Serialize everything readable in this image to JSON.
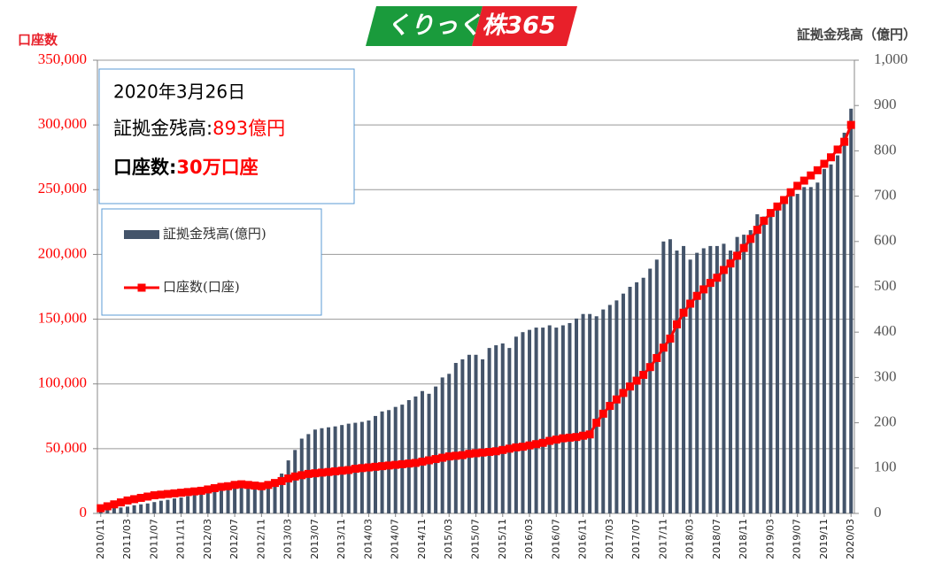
{
  "chart_data": {
    "type": "combo",
    "logo": "くりっく株365",
    "y_label": "口座数",
    "y2_label": "証拠金残高（億円）",
    "annotation": {
      "date": "2020年3月26日",
      "balance_label": "証拠金残高:",
      "balance_value": "893億円",
      "accounts_label": "口座数:",
      "accounts_value": "30万口座"
    },
    "categories": [
      "2010/11",
      null,
      null,
      null,
      "2011/03",
      null,
      null,
      null,
      "2011/07",
      null,
      null,
      null,
      "2011/11",
      null,
      null,
      null,
      "2012/03",
      null,
      null,
      null,
      "2012/07",
      null,
      null,
      null,
      "2012/11",
      null,
      null,
      null,
      "2013/03",
      null,
      null,
      null,
      "2013/07",
      null,
      null,
      null,
      "2013/11",
      null,
      null,
      null,
      "2014/03",
      null,
      null,
      null,
      "2014/07",
      null,
      null,
      null,
      "2014/11",
      null,
      null,
      null,
      "2015/03",
      null,
      null,
      null,
      "2015/07",
      null,
      null,
      null,
      "2015/11",
      null,
      null,
      null,
      "2016/03",
      null,
      null,
      null,
      "2016/07",
      null,
      null,
      null,
      "2016/11",
      null,
      null,
      null,
      "2017/03",
      null,
      null,
      null,
      "2017/07",
      null,
      null,
      null,
      "2017/11",
      null,
      null,
      null,
      "2018/03",
      null,
      null,
      null,
      "2018/07",
      null,
      null,
      null,
      "2018/11",
      null,
      null,
      null,
      "2019/03",
      null,
      null,
      null,
      "2019/07",
      null,
      null,
      null,
      "2019/11",
      null,
      null,
      null,
      "2020/03"
    ],
    "series": [
      {
        "name": "証拠金残高(億円)",
        "type": "bar",
        "axis": "y2",
        "color": "#44546a",
        "values": [
          8,
          10,
          12,
          13,
          15,
          18,
          20,
          22,
          25,
          28,
          30,
          33,
          35,
          38,
          40,
          42,
          45,
          48,
          50,
          52,
          55,
          56,
          58,
          58,
          60,
          65,
          72,
          88,
          117,
          140,
          165,
          175,
          185,
          188,
          190,
          192,
          195,
          198,
          200,
          202,
          205,
          215,
          225,
          228,
          235,
          240,
          250,
          258,
          270,
          264,
          280,
          300,
          308,
          332,
          340,
          350,
          350,
          340,
          365,
          371,
          375,
          365,
          390,
          400,
          405,
          410,
          410,
          415,
          410,
          415,
          420,
          430,
          440,
          440,
          435,
          450,
          460,
          470,
          485,
          500,
          510,
          520,
          540,
          560,
          600,
          605,
          580,
          590,
          560,
          575,
          585,
          590,
          590,
          595,
          580,
          610,
          615,
          625,
          660,
          655,
          670,
          680,
          700,
          710,
          705,
          720,
          720,
          730,
          760,
          770,
          790,
          840,
          893
        ]
      },
      {
        "name": "口座数(口座)",
        "type": "line",
        "color": "#ff0000",
        "values": [
          4000,
          5500,
          7000,
          8500,
          10000,
          11000,
          12000,
          13000,
          14000,
          14500,
          15000,
          15500,
          16000,
          16500,
          17000,
          17500,
          18500,
          19500,
          20500,
          21000,
          22000,
          22500,
          22000,
          21500,
          21000,
          22000,
          23500,
          25000,
          27000,
          28500,
          29500,
          30500,
          31000,
          31500,
          32000,
          32500,
          33000,
          33500,
          34500,
          35000,
          35500,
          36000,
          36500,
          37000,
          37500,
          38000,
          38500,
          39000,
          40000,
          41000,
          42000,
          43000,
          44000,
          44500,
          45000,
          46000,
          46500,
          47000,
          47500,
          48000,
          49000,
          50000,
          51000,
          51500,
          52500,
          53500,
          54500,
          56000,
          57000,
          58000,
          58500,
          59000,
          60000,
          61000,
          70000,
          77000,
          83000,
          88000,
          93000,
          98000,
          102500,
          107000,
          113000,
          120000,
          128000,
          135000,
          146000,
          155000,
          162000,
          168000,
          173000,
          178000,
          182000,
          188000,
          193000,
          199000,
          205000,
          212000,
          219000,
          226000,
          232000,
          237000,
          242000,
          248000,
          253000,
          257000,
          261000,
          265000,
          270000,
          275000,
          281000,
          287000,
          300000
        ]
      }
    ],
    "ylim": [
      0,
      350000
    ],
    "yticks": [
      0,
      {
        "value": 50000,
        "label": "50,000"
      },
      {
        "value": 100000,
        "label": "100,000"
      },
      {
        "value": 150000,
        "label": "150,000"
      },
      {
        "value": 200000,
        "label": "200,000"
      },
      {
        "value": 250000,
        "label": "250,000"
      },
      {
        "value": 300000,
        "label": "300,000"
      },
      {
        "value": 350000,
        "label": "350,000"
      }
    ],
    "y2lim": [
      0,
      1000
    ],
    "y2ticks": [
      0,
      100,
      200,
      300,
      400,
      500,
      600,
      700,
      800,
      900,
      {
        "value": 1000,
        "label": "1,000"
      }
    ],
    "grid": true
  }
}
